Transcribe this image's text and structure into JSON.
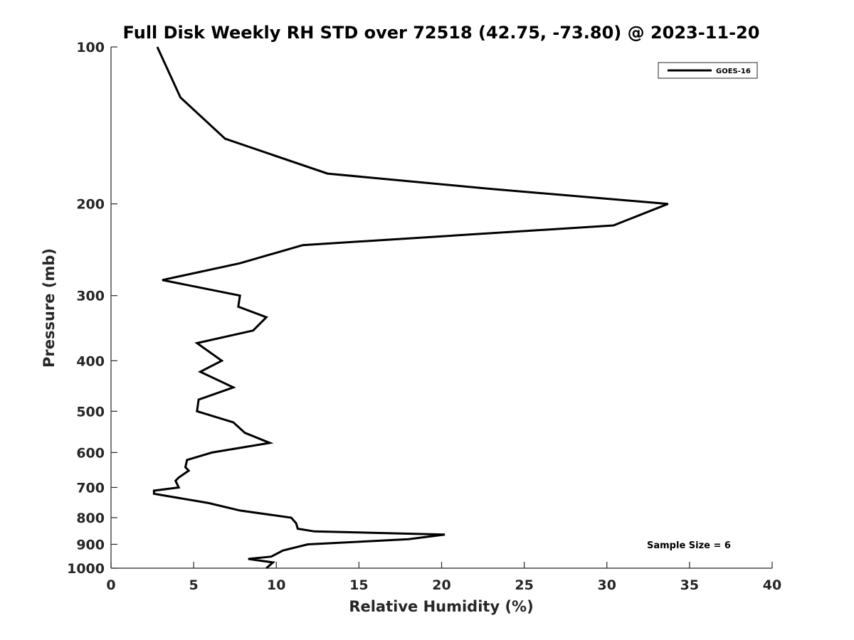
{
  "chart_data": {
    "type": "line",
    "title": "Full Disk Weekly RH STD over 72518 (42.75, -73.80) @ 2023-11-20",
    "xlabel": "Relative Humidity (%)",
    "ylabel": "Pressure (mb)",
    "xlim": [
      0,
      40
    ],
    "ylim": [
      100,
      1000
    ],
    "y_scale": "log",
    "y_reversed": true,
    "x_ticks": [
      0,
      5,
      10,
      15,
      20,
      25,
      30,
      35,
      40
    ],
    "y_ticks": [
      100,
      200,
      300,
      400,
      500,
      600,
      700,
      800,
      900,
      1000
    ],
    "grid": false,
    "legend_position": "top-right",
    "series": [
      {
        "name": "GOES-16",
        "color": "#000000",
        "points": [
          [
            2.8,
            100
          ],
          [
            4.2,
            125
          ],
          [
            6.9,
            150
          ],
          [
            13.1,
            175
          ],
          [
            22.8,
            187
          ],
          [
            33.7,
            200
          ],
          [
            30.4,
            220
          ],
          [
            11.6,
            240
          ],
          [
            7.8,
            260
          ],
          [
            3.1,
            280
          ],
          [
            7.8,
            300
          ],
          [
            7.7,
            315
          ],
          [
            9.4,
            330
          ],
          [
            8.6,
            350
          ],
          [
            5.2,
            370
          ],
          [
            6.7,
            400
          ],
          [
            5.4,
            420
          ],
          [
            7.4,
            450
          ],
          [
            5.3,
            475
          ],
          [
            5.2,
            500
          ],
          [
            7.4,
            525
          ],
          [
            8.1,
            550
          ],
          [
            9.6,
            575
          ],
          [
            6.1,
            600
          ],
          [
            4.6,
            620
          ],
          [
            4.5,
            640
          ],
          [
            4.7,
            650
          ],
          [
            4.1,
            670
          ],
          [
            3.9,
            680
          ],
          [
            4.1,
            700
          ],
          [
            2.6,
            710
          ],
          [
            2.6,
            720
          ],
          [
            5.9,
            750
          ],
          [
            7.8,
            775
          ],
          [
            10.9,
            800
          ],
          [
            11.2,
            820
          ],
          [
            11.3,
            840
          ],
          [
            12.3,
            850
          ],
          [
            20.2,
            862
          ],
          [
            18.0,
            880
          ],
          [
            11.9,
            900
          ],
          [
            10.4,
            925
          ],
          [
            9.7,
            950
          ],
          [
            8.3,
            960
          ],
          [
            9.8,
            975
          ],
          [
            9.4,
            1000
          ]
        ]
      }
    ],
    "annotations": [
      {
        "text": "Sample Size = 6",
        "position": "bottom-right"
      }
    ]
  }
}
